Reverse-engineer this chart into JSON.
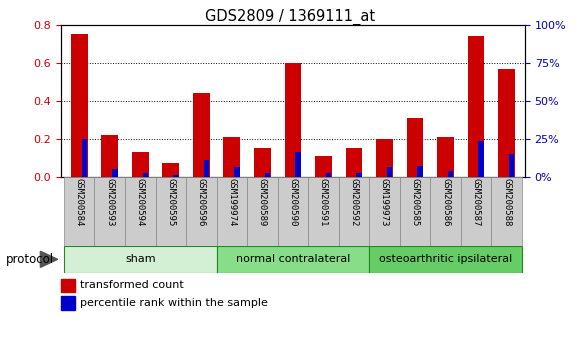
{
  "title": "GDS2809 / 1369111_at",
  "samples": [
    "GSM200584",
    "GSM200593",
    "GSM200594",
    "GSM200595",
    "GSM200596",
    "GSM199974",
    "GSM200589",
    "GSM200590",
    "GSM200591",
    "GSM200592",
    "GSM199973",
    "GSM200585",
    "GSM200586",
    "GSM200587",
    "GSM200588"
  ],
  "red_values": [
    0.75,
    0.22,
    0.13,
    0.075,
    0.44,
    0.21,
    0.15,
    0.6,
    0.11,
    0.15,
    0.2,
    0.31,
    0.21,
    0.74,
    0.57
  ],
  "blue_values": [
    0.2,
    0.04,
    0.02,
    0.01,
    0.09,
    0.05,
    0.02,
    0.13,
    0.02,
    0.02,
    0.05,
    0.06,
    0.03,
    0.19,
    0.12
  ],
  "groups": [
    {
      "label": "sham",
      "start": 0,
      "end": 5,
      "color": "#d4f0d4"
    },
    {
      "label": "normal contralateral",
      "start": 5,
      "end": 10,
      "color": "#88dd88"
    },
    {
      "label": "osteoarthritic ipsilateral",
      "start": 10,
      "end": 15,
      "color": "#66cc66"
    }
  ],
  "ylim_left": [
    0,
    0.8
  ],
  "ylim_right": [
    0,
    100
  ],
  "yticks_left": [
    0,
    0.2,
    0.4,
    0.6,
    0.8
  ],
  "yticks_right": [
    0,
    25,
    50,
    75,
    100
  ],
  "left_tick_color": "#cc0000",
  "right_tick_color": "#0000bb",
  "red_color": "#cc0000",
  "blue_color": "#0000cc",
  "legend_red": "transformed count",
  "legend_blue": "percentile rank within the sample",
  "protocol_label": "protocol",
  "label_box_color": "#cccccc",
  "bar_width": 0.55,
  "blue_bar_width": 0.18
}
